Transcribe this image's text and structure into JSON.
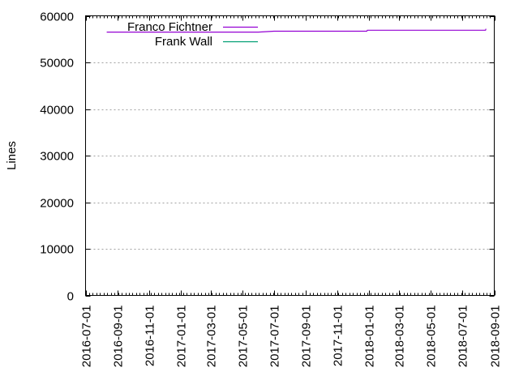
{
  "chart_data": {
    "type": "line",
    "title": "",
    "xlabel": "",
    "ylabel": "Lines",
    "ylim": [
      0,
      60000
    ],
    "xlim": [
      "2016-07-01",
      "2018-09-01"
    ],
    "grid": {
      "y": true,
      "x": false,
      "style": "dotted",
      "color": "#a0a0a0"
    },
    "legend_position": "top-left (inside)",
    "yticks": [
      0,
      10000,
      20000,
      30000,
      40000,
      50000,
      60000
    ],
    "ytick_labels": [
      "0",
      "10000",
      "20000",
      "30000",
      "40000",
      "50000",
      "60000"
    ],
    "xtick_labels": [
      "2016-07-01",
      "2016-09-01",
      "2016-11-01",
      "2017-01-01",
      "2017-03-01",
      "2017-05-01",
      "2017-07-01",
      "2017-09-01",
      "2017-11-01",
      "2018-01-01",
      "2018-03-01",
      "2018-05-01",
      "2018-07-01",
      "2018-09-01"
    ],
    "series": [
      {
        "name": "Franco Fichtner",
        "color": "#9400d3",
        "points": [
          {
            "x": "2016-08-11",
            "y": 56500
          },
          {
            "x": "2017-06-01",
            "y": 56500
          },
          {
            "x": "2017-07-01",
            "y": 56700
          },
          {
            "x": "2017-12-28",
            "y": 56700
          },
          {
            "x": "2017-12-29",
            "y": 56900
          },
          {
            "x": "2018-08-15",
            "y": 56900
          },
          {
            "x": "2018-08-16",
            "y": 57200
          }
        ]
      },
      {
        "name": "Frank Wall",
        "color": "#009e73",
        "points": []
      }
    ]
  }
}
